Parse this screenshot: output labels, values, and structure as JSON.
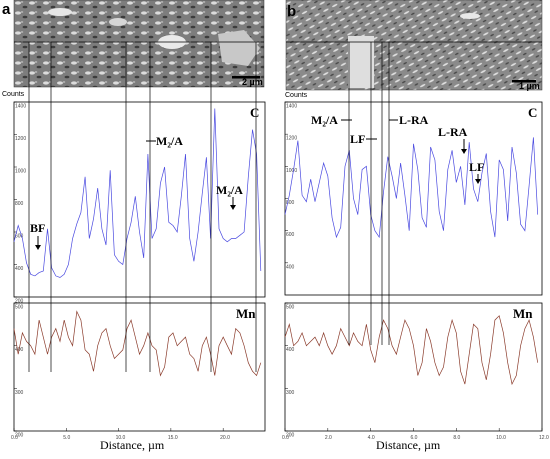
{
  "panels": [
    {
      "letter": "a",
      "scale_bar": "2 µm",
      "counts_label": "Counts",
      "x_label": "Distance, µm",
      "element_top": "C",
      "element_bottom": "Mn",
      "c_y_ticks": [
        "200",
        "400",
        "600",
        "800",
        "1000",
        "1200",
        "1400"
      ],
      "mn_y_ticks": [
        "200",
        "300",
        "400",
        "500"
      ],
      "x_ticks": [
        "0.0",
        "5.0",
        "10.0",
        "15.0",
        "20.0"
      ],
      "annotations": [
        {
          "text": "BF",
          "arrow": "down"
        },
        {
          "text": "M₂/A",
          "arrow": "left"
        },
        {
          "text": "M₂/A",
          "arrow": "down"
        }
      ]
    },
    {
      "letter": "b",
      "scale_bar": "1 µm",
      "counts_label": "Counts",
      "x_label": "Distance, µm",
      "element_top": "C",
      "element_bottom": "Mn",
      "c_y_ticks": [
        "400",
        "600",
        "800",
        "1000",
        "1200",
        "1400"
      ],
      "mn_y_ticks": [
        "200",
        "300",
        "400",
        "500"
      ],
      "x_ticks": [
        "0.0",
        "2.0",
        "4.0",
        "6.0",
        "8.0",
        "10.0",
        "12.0"
      ],
      "annotations": [
        {
          "text": "M₂/A",
          "arrow": "right"
        },
        {
          "text": "LF",
          "arrow": "right"
        },
        {
          "text": "L-RA",
          "arrow": "left"
        },
        {
          "text": "L-RA",
          "arrow": "down"
        },
        {
          "text": "LF",
          "arrow": "down"
        }
      ]
    }
  ],
  "chart_data": [
    {
      "type": "line",
      "panel": "a",
      "xlabel": "Distance, µm",
      "ylabel": "Counts",
      "xlim": [
        0,
        24
      ],
      "series": [
        {
          "name": "C",
          "color": "#4a4ae0",
          "ylim": [
            200,
            1400
          ],
          "x": [
            0,
            0.4,
            0.8,
            1.2,
            1.6,
            2.0,
            2.4,
            2.8,
            3.2,
            3.6,
            4.0,
            4.4,
            4.8,
            5.2,
            5.6,
            6.0,
            6.4,
            6.8,
            7.2,
            7.6,
            8.0,
            8.4,
            8.8,
            9.2,
            9.6,
            10.0,
            10.4,
            10.8,
            11.2,
            11.6,
            12.0,
            12.4,
            12.8,
            13.2,
            13.6,
            14.0,
            14.4,
            14.8,
            15.2,
            15.6,
            16.0,
            16.4,
            16.8,
            17.2,
            17.6,
            18.0,
            18.4,
            18.8,
            19.2,
            19.6,
            20.0,
            20.4,
            20.8,
            21.2,
            21.6,
            22.0,
            22.4,
            22.8,
            23.2,
            23.6
          ],
          "values": [
            540,
            640,
            560,
            410,
            340,
            330,
            350,
            360,
            620,
            380,
            330,
            320,
            340,
            400,
            560,
            650,
            720,
            940,
            560,
            680,
            870,
            620,
            520,
            980,
            460,
            420,
            400,
            560,
            660,
            820,
            600,
            440,
            1080,
            560,
            620,
            900,
            1000,
            660,
            640,
            600,
            820,
            1080,
            560,
            420,
            600,
            840,
            1060,
            560,
            1360,
            620,
            560,
            540,
            560,
            560,
            580,
            600,
            940,
            1230,
            1080,
            360
          ],
          "style": "solid"
        },
        {
          "name": "Mn",
          "color": "#8a3a2a",
          "ylim": [
            200,
            500
          ],
          "x": [
            0,
            0.4,
            0.8,
            1.2,
            1.6,
            2.0,
            2.4,
            2.8,
            3.2,
            3.6,
            4.0,
            4.4,
            4.8,
            5.2,
            5.6,
            6.0,
            6.4,
            6.8,
            7.2,
            7.6,
            8.0,
            8.4,
            8.8,
            9.2,
            9.6,
            10.0,
            10.4,
            10.8,
            11.2,
            11.6,
            12.0,
            12.4,
            12.8,
            13.2,
            13.6,
            14.0,
            14.4,
            14.8,
            15.2,
            15.6,
            16.0,
            16.4,
            16.8,
            17.2,
            17.6,
            18.0,
            18.4,
            18.8,
            19.2,
            19.6,
            20.0,
            20.4,
            20.8,
            21.2,
            21.6,
            22.0,
            22.4,
            22.8,
            23.2,
            23.6
          ],
          "values": [
            440,
            380,
            430,
            410,
            400,
            380,
            460,
            420,
            380,
            420,
            440,
            410,
            460,
            420,
            400,
            480,
            460,
            390,
            380,
            340,
            400,
            430,
            440,
            400,
            370,
            380,
            390,
            440,
            460,
            420,
            380,
            400,
            430,
            400,
            390,
            330,
            350,
            420,
            430,
            400,
            410,
            420,
            380,
            370,
            340,
            400,
            420,
            380,
            330,
            400,
            420,
            400,
            380,
            440,
            430,
            400,
            360,
            340,
            330,
            360
          ],
          "style": "solid"
        }
      ]
    },
    {
      "type": "line",
      "panel": "b",
      "xlabel": "Distance, µm",
      "ylabel": "Counts",
      "xlim": [
        0,
        12
      ],
      "series": [
        {
          "name": "C",
          "color": "#4a4ae0",
          "ylim": [
            200,
            1400
          ],
          "x": [
            0,
            0.2,
            0.4,
            0.6,
            0.8,
            1.0,
            1.2,
            1.4,
            1.6,
            1.8,
            2.0,
            2.2,
            2.4,
            2.6,
            2.8,
            3.0,
            3.2,
            3.4,
            3.6,
            3.8,
            4.0,
            4.2,
            4.4,
            4.6,
            4.8,
            5.0,
            5.2,
            5.4,
            5.6,
            5.8,
            6.0,
            6.2,
            6.4,
            6.6,
            6.8,
            7.0,
            7.2,
            7.4,
            7.6,
            7.8,
            8.0,
            8.2,
            8.4,
            8.6,
            8.8,
            9.0,
            9.2,
            9.4,
            9.6,
            9.8,
            10.0,
            10.2,
            10.4,
            10.6,
            10.8,
            11.0,
            11.2,
            11.4,
            11.6,
            11.8
          ],
          "values": [
            700,
            820,
            980,
            1160,
            820,
            780,
            920,
            780,
            900,
            1020,
            940,
            680,
            560,
            620,
            1000,
            1100,
            800,
            700,
            980,
            1000,
            700,
            600,
            560,
            840,
            1060,
            940,
            800,
            1020,
            820,
            600,
            1140,
            980,
            680,
            620,
            1120,
            1040,
            720,
            600,
            980,
            1100,
            900,
            1000,
            760,
            1150,
            860,
            780,
            960,
            1080,
            720,
            560,
            1040,
            980,
            660,
            1120,
            960,
            640,
            600,
            880,
            1180,
            700
          ],
          "style": "solid"
        },
        {
          "name": "Mn",
          "color": "#8a3a2a",
          "ylim": [
            200,
            500
          ],
          "x": [
            0,
            0.2,
            0.4,
            0.6,
            0.8,
            1.0,
            1.2,
            1.4,
            1.6,
            1.8,
            2.0,
            2.2,
            2.4,
            2.6,
            2.8,
            3.0,
            3.2,
            3.4,
            3.6,
            3.8,
            4.0,
            4.2,
            4.4,
            4.6,
            4.8,
            5.0,
            5.2,
            5.4,
            5.6,
            5.8,
            6.0,
            6.2,
            6.4,
            6.6,
            6.8,
            7.0,
            7.2,
            7.4,
            7.6,
            7.8,
            8.0,
            8.2,
            8.4,
            8.6,
            8.8,
            9.0,
            9.2,
            9.4,
            9.6,
            9.8,
            10.0,
            10.2,
            10.4,
            10.6,
            10.8,
            11.0,
            11.2,
            11.4,
            11.6,
            11.8
          ],
          "values": [
            420,
            450,
            400,
            410,
            430,
            400,
            410,
            420,
            400,
            430,
            400,
            380,
            400,
            440,
            420,
            400,
            430,
            410,
            400,
            450,
            390,
            360,
            420,
            460,
            440,
            400,
            380,
            420,
            460,
            440,
            400,
            330,
            360,
            440,
            410,
            360,
            330,
            350,
            420,
            460,
            430,
            340,
            310,
            380,
            450,
            440,
            360,
            320,
            380,
            460,
            470,
            430,
            360,
            310,
            330,
            400,
            440,
            460,
            420,
            360
          ],
          "style": "solid"
        }
      ]
    }
  ]
}
